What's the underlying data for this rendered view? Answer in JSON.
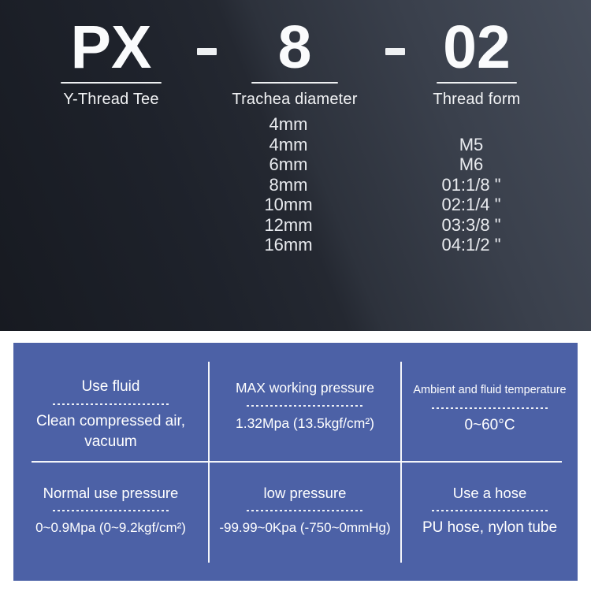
{
  "colors": {
    "panel_blue": "#4c61a6",
    "dark_background_start": "#171a21",
    "dark_background_end": "#464d5a",
    "text_light": "#ffffff"
  },
  "model": {
    "separator": "-",
    "segments": [
      {
        "code": "PX",
        "label": "Y-Thread Tee"
      },
      {
        "code": "8",
        "label": "Trachea diameter"
      },
      {
        "code": "02",
        "label": "Thread form"
      }
    ]
  },
  "options": {
    "rows": [
      {
        "diameter": "4mm",
        "thread": ""
      },
      {
        "diameter": "4mm",
        "thread": "M5"
      },
      {
        "diameter": "6mm",
        "thread": "M6"
      },
      {
        "diameter": "8mm",
        "thread": "01:1/8 \""
      },
      {
        "diameter": "10mm",
        "thread": "02:1/4 \""
      },
      {
        "diameter": "12mm",
        "thread": "03:3/8 \""
      },
      {
        "diameter": "16mm",
        "thread": "04:1/2 \""
      }
    ]
  },
  "spec_table": {
    "cells": [
      {
        "header": "Use fluid",
        "value": "Clean compressed air,\nvacuum"
      },
      {
        "header": "MAX working pressure",
        "value": "1.32Mpa  (13.5kgf/cm²)"
      },
      {
        "header": "Ambient and fluid temperature",
        "value": "0~60°C"
      },
      {
        "header": "Normal use pressure",
        "value": "0~0.9Mpa  (0~9.2kgf/cm²)"
      },
      {
        "header": "low pressure",
        "value": "-99.99~0Kpa  (-750~0mmHg)"
      },
      {
        "header": "Use a hose",
        "value": "PU hose, nylon tube"
      }
    ]
  }
}
